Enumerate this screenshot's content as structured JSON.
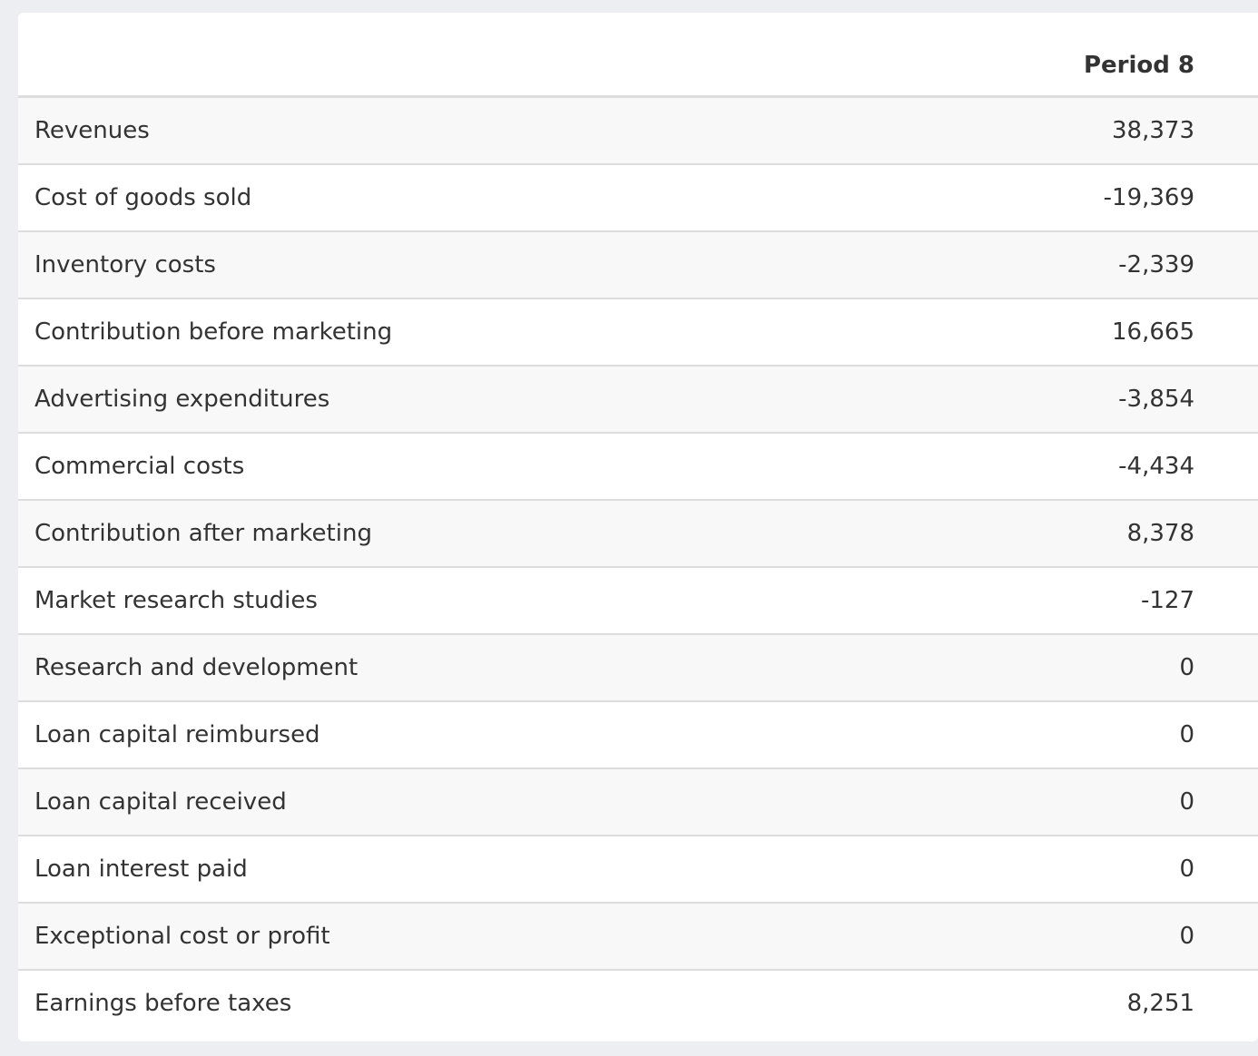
{
  "table": {
    "column_header": "Period 8",
    "rows": [
      {
        "label": "Revenues",
        "value": "38,373"
      },
      {
        "label": "Cost of goods sold",
        "value": "-19,369"
      },
      {
        "label": "Inventory costs",
        "value": "-2,339"
      },
      {
        "label": "Contribution before marketing",
        "value": "16,665"
      },
      {
        "label": "Advertising expenditures",
        "value": "-3,854"
      },
      {
        "label": "Commercial costs",
        "value": "-4,434"
      },
      {
        "label": "Contribution after marketing",
        "value": "8,378"
      },
      {
        "label": "Market research studies",
        "value": "-127"
      },
      {
        "label": "Research and development",
        "value": "0"
      },
      {
        "label": "Loan capital reimbursed",
        "value": "0"
      },
      {
        "label": "Loan capital received",
        "value": "0"
      },
      {
        "label": "Loan interest paid",
        "value": "0"
      },
      {
        "label": "Exceptional cost or profit",
        "value": "0"
      },
      {
        "label": "Earnings before taxes",
        "value": "8,251"
      }
    ]
  }
}
